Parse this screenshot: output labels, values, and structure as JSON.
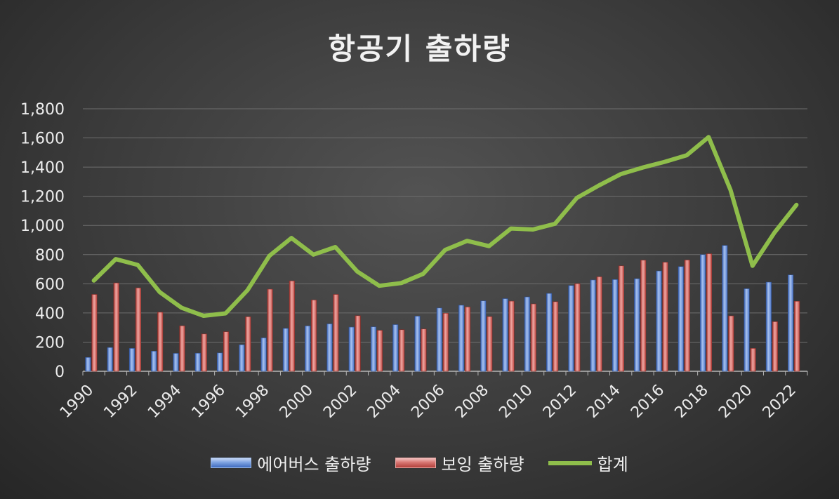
{
  "chart_data": {
    "type": "bar",
    "title": "항공기 출하량",
    "xlabel": "",
    "ylabel": "",
    "x": [
      1990,
      1991,
      1992,
      1993,
      1994,
      1995,
      1996,
      1997,
      1998,
      1999,
      2000,
      2001,
      2002,
      2003,
      2004,
      2005,
      2006,
      2007,
      2008,
      2009,
      2010,
      2011,
      2012,
      2013,
      2014,
      2015,
      2016,
      2017,
      2018,
      2019,
      2020,
      2021,
      2022
    ],
    "x_tick_labels": [
      "1990",
      "1992",
      "1994",
      "1996",
      "1998",
      "2000",
      "2002",
      "2004",
      "2006",
      "2008",
      "2010",
      "2012",
      "2014",
      "2016",
      "2018",
      "2020",
      "2022"
    ],
    "y_tick_labels": [
      "0",
      "200",
      "400",
      "600",
      "800",
      "1,000",
      "1,200",
      "1,400",
      "1,600",
      "1,800"
    ],
    "ylim": [
      0,
      1800
    ],
    "grid": true,
    "legend_position": "bottom",
    "series": [
      {
        "name": "에어버스 출하량",
        "kind": "bar",
        "color": "#5b84d6",
        "values": [
          95,
          163,
          157,
          138,
          123,
          124,
          126,
          182,
          229,
          294,
          311,
          325,
          303,
          305,
          320,
          378,
          434,
          453,
          483,
          498,
          510,
          534,
          588,
          626,
          629,
          635,
          688,
          718,
          800,
          863,
          566,
          611,
          661
        ]
      },
      {
        "name": "보잉 출하량",
        "kind": "bar",
        "color": "#d0605c",
        "values": [
          527,
          606,
          572,
          405,
          312,
          256,
          271,
          374,
          563,
          620,
          489,
          527,
          381,
          281,
          285,
          290,
          398,
          441,
          375,
          481,
          462,
          477,
          601,
          648,
          723,
          762,
          748,
          763,
          806,
          380,
          157,
          340,
          480
        ]
      },
      {
        "name": "합계",
        "kind": "line",
        "color": "#8fbe4b",
        "values": [
          622,
          769,
          729,
          543,
          435,
          380,
          397,
          556,
          792,
          914,
          800,
          852,
          684,
          586,
          605,
          668,
          832,
          894,
          858,
          979,
          972,
          1011,
          1189,
          1274,
          1352,
          1397,
          1436,
          1481,
          1606,
          1243,
          723,
          951,
          1141
        ]
      }
    ]
  }
}
